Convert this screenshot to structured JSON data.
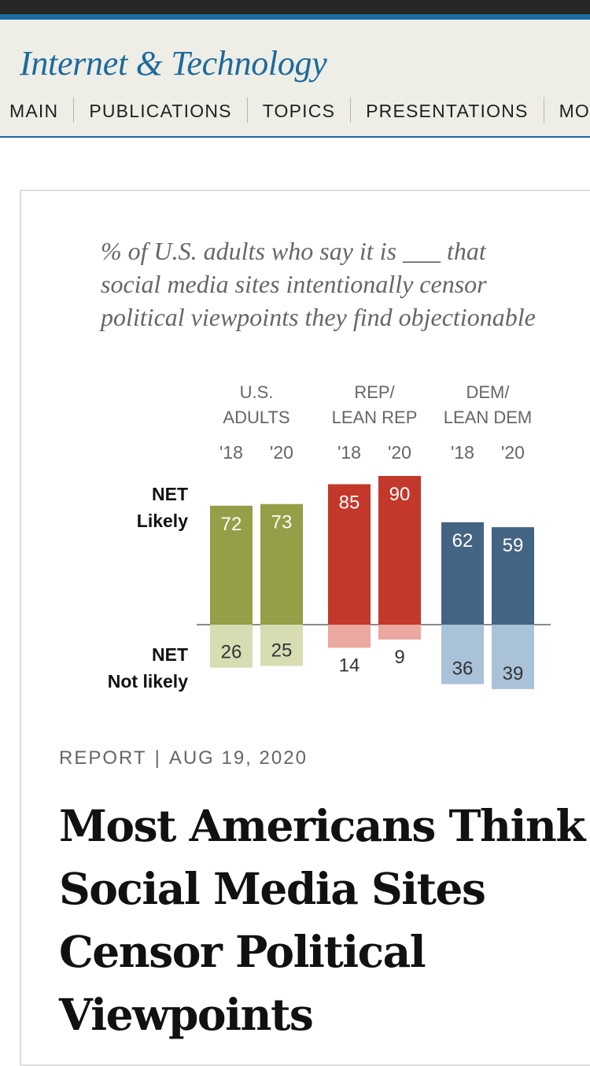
{
  "header": {
    "section_title": "Internet & Technology",
    "nav": [
      "MAIN",
      "PUBLICATIONS",
      "TOPICS",
      "PRESENTATIONS",
      "MOR"
    ]
  },
  "figure": {
    "subtitle": "% of U.S. adults who say it is ___ that social media sites intentionally censor political viewpoints they find objectionable"
  },
  "chart_data": {
    "type": "bar",
    "title": "",
    "groups": [
      {
        "label_lines": [
          "U.S.",
          "ADULTS"
        ],
        "years": [
          "'18",
          "'20"
        ],
        "likely": [
          72,
          73
        ],
        "not_likely": [
          26,
          25
        ],
        "color_likely": "#949f47",
        "color_not": "#d7dcb3"
      },
      {
        "label_lines": [
          "REP/",
          "LEAN REP"
        ],
        "years": [
          "'18",
          "'20"
        ],
        "likely": [
          85,
          90
        ],
        "not_likely": [
          14,
          9
        ],
        "color_likely": "#c4372b",
        "color_not": "#eba8a0"
      },
      {
        "label_lines": [
          "DEM/",
          "LEAN DEM"
        ],
        "years": [
          "'18",
          "'20"
        ],
        "likely": [
          62,
          59
        ],
        "not_likely": [
          36,
          39
        ],
        "color_likely": "#436482",
        "color_not": "#a9c2d8"
      }
    ],
    "row_labels": {
      "likely": [
        "NET",
        "Likely"
      ],
      "not_likely": [
        "NET",
        "Not likely"
      ]
    }
  },
  "article": {
    "type": "REPORT",
    "separator": "|",
    "date": "AUG 19, 2020",
    "title": "Most Americans Think Social Media Sites Censor Political Viewpoints"
  }
}
